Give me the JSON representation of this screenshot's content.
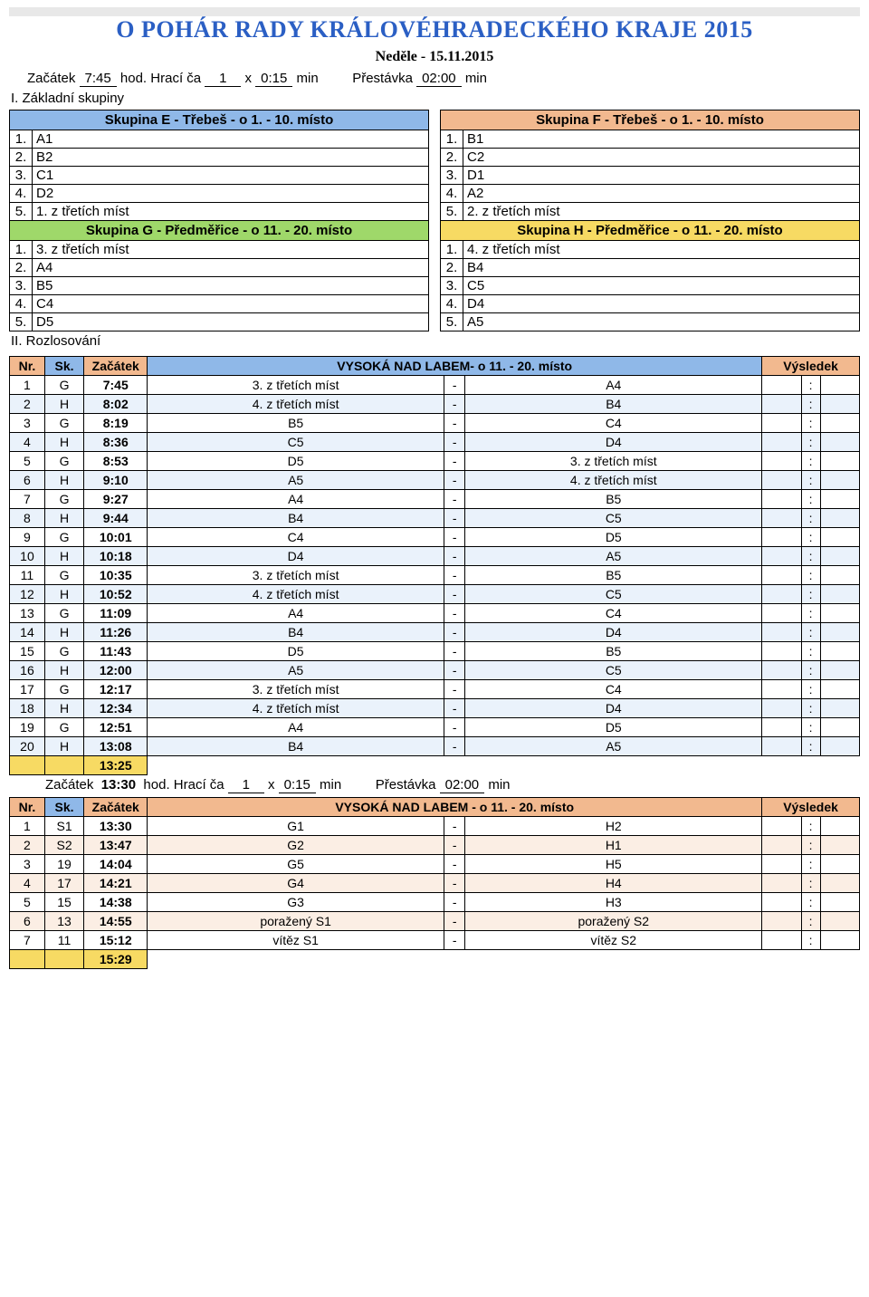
{
  "title": "O POHÁR RADY KRÁLOVÉHRADECKÉHO KRAJE 2015",
  "subtitle": "Neděle - 15.11.2015",
  "line1": {
    "start_lbl": "Začátek",
    "start": "7:45",
    "hod": "hod.",
    "interval_lbl": "Hrací ča",
    "n": "1",
    "x": "x",
    "dur": "0:15",
    "min": "min",
    "break_lbl": "Přestávka",
    "break": "02:00",
    "min2": "min"
  },
  "section1": "I. Základní skupiny",
  "colors": {
    "E": "#8fb8e8",
    "F": "#f2b98f",
    "G": "#9fd86a",
    "H": "#f7da63",
    "hdr_nr": "#f2b98f",
    "hdr_sk": "#8fb8e8",
    "hdr_tm": "#f2b98f",
    "hdr_mid": "#8fb8e8",
    "hdr_res": "#f2b98f",
    "row_odd": "#ffffff",
    "row_even": "#eaf2fb",
    "hdr2": "#f2b98f",
    "row2_even": "#fbeee4",
    "time_row": "#f7da63"
  },
  "groups": {
    "E": {
      "title": "Skupina E - Třebeš - o 1. - 10. místo",
      "rows": [
        [
          "1.",
          "A1"
        ],
        [
          "2.",
          "B2"
        ],
        [
          "3.",
          "C1"
        ],
        [
          "4.",
          "D2"
        ],
        [
          "5.",
          "1. z třetích míst"
        ]
      ]
    },
    "F": {
      "title": "Skupina F - Třebeš - o 1. - 10. místo",
      "rows": [
        [
          "1.",
          "B1"
        ],
        [
          "2.",
          "C2"
        ],
        [
          "3.",
          "D1"
        ],
        [
          "4.",
          "A2"
        ],
        [
          "5.",
          "2. z třetích míst"
        ]
      ]
    },
    "G": {
      "title": "Skupina G - Předměřice - o 11. - 20. místo",
      "rows": [
        [
          "1.",
          "3. z třetích míst"
        ],
        [
          "2.",
          "A4"
        ],
        [
          "3.",
          "B5"
        ],
        [
          "4.",
          "C4"
        ],
        [
          "5.",
          "D5"
        ]
      ]
    },
    "H": {
      "title": "Skupina H - Předměřice - o 11. - 20. místo",
      "rows": [
        [
          "1.",
          "4. z třetích míst"
        ],
        [
          "2.",
          "B4"
        ],
        [
          "3.",
          "C5"
        ],
        [
          "4.",
          "D4"
        ],
        [
          "5.",
          "A5"
        ]
      ]
    }
  },
  "section2": "II. Rozlosování",
  "sched1": {
    "hdr": {
      "nr": "Nr.",
      "sk": "Sk.",
      "start": "Začátek",
      "title": "VYSOKÁ NAD LABEM- o 11. - 20. místo",
      "res": "Výsledek"
    },
    "rows": [
      [
        "1",
        "G",
        "7:45",
        "3. z třetích míst",
        "A4"
      ],
      [
        "2",
        "H",
        "8:02",
        "4. z třetích míst",
        "B4"
      ],
      [
        "3",
        "G",
        "8:19",
        "B5",
        "C4"
      ],
      [
        "4",
        "H",
        "8:36",
        "C5",
        "D4"
      ],
      [
        "5",
        "G",
        "8:53",
        "D5",
        "3. z třetích míst"
      ],
      [
        "6",
        "H",
        "9:10",
        "A5",
        "4. z třetích míst"
      ],
      [
        "7",
        "G",
        "9:27",
        "A4",
        "B5"
      ],
      [
        "8",
        "H",
        "9:44",
        "B4",
        "C5"
      ],
      [
        "9",
        "G",
        "10:01",
        "C4",
        "D5"
      ],
      [
        "10",
        "H",
        "10:18",
        "D4",
        "A5"
      ],
      [
        "11",
        "G",
        "10:35",
        "3. z třetích míst",
        "B5"
      ],
      [
        "12",
        "H",
        "10:52",
        "4. z třetích míst",
        "C5"
      ],
      [
        "13",
        "G",
        "11:09",
        "A4",
        "C4"
      ],
      [
        "14",
        "H",
        "11:26",
        "B4",
        "D4"
      ],
      [
        "15",
        "G",
        "11:43",
        "D5",
        "B5"
      ],
      [
        "16",
        "H",
        "12:00",
        "A5",
        "C5"
      ],
      [
        "17",
        "G",
        "12:17",
        "3. z třetích míst",
        "C4"
      ],
      [
        "18",
        "H",
        "12:34",
        "4. z třetích míst",
        "D4"
      ],
      [
        "19",
        "G",
        "12:51",
        "A4",
        "D5"
      ],
      [
        "20",
        "H",
        "13:08",
        "B4",
        "A5"
      ]
    ],
    "end_time": "13:25"
  },
  "line2": {
    "start_lbl": "Začátek",
    "start": "13:30",
    "hod": "hod.",
    "interval_lbl": "Hrací ča",
    "n": "1",
    "x": "x",
    "dur": "0:15",
    "min": "min",
    "break_lbl": "Přestávka",
    "break": "02:00",
    "min2": "min"
  },
  "sched2": {
    "hdr": {
      "nr": "Nr.",
      "sk": "Sk.",
      "start": "Začátek",
      "title": "VYSOKÁ NAD LABEM - o 11. - 20. místo",
      "res": "Výsledek"
    },
    "rows": [
      [
        "1",
        "S1",
        "13:30",
        "G1",
        "H2"
      ],
      [
        "2",
        "S2",
        "13:47",
        "G2",
        "H1"
      ],
      [
        "3",
        "19",
        "14:04",
        "G5",
        "H5"
      ],
      [
        "4",
        "17",
        "14:21",
        "G4",
        "H4"
      ],
      [
        "5",
        "15",
        "14:38",
        "G3",
        "H3"
      ],
      [
        "6",
        "13",
        "14:55",
        "poražený S1",
        "poražený S2"
      ],
      [
        "7",
        "11",
        "15:12",
        "vítěz S1",
        "vítěz S2"
      ]
    ],
    "end_time": "15:29"
  }
}
